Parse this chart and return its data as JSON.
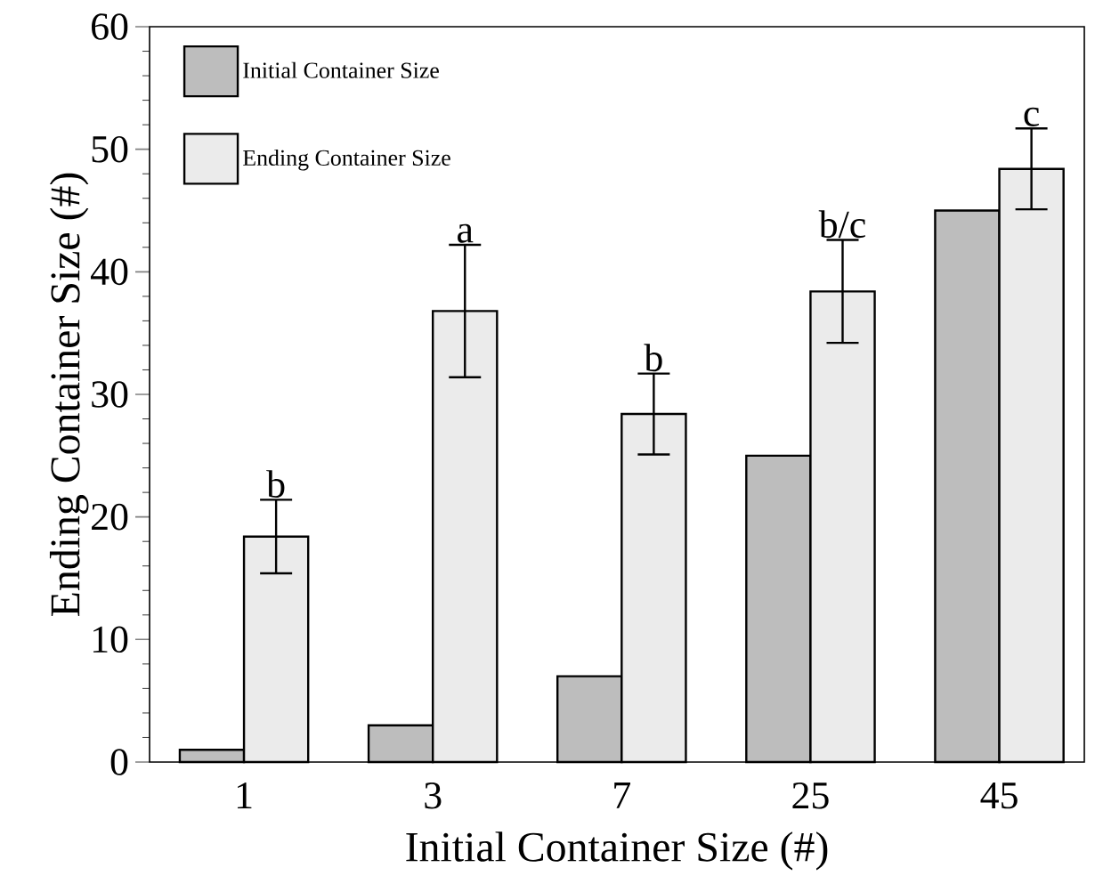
{
  "chart_data": {
    "type": "bar",
    "xlabel": "Initial Container Size (#)",
    "ylabel": "Ending Container Size (#)",
    "categories": [
      "1",
      "3",
      "7",
      "25",
      "45"
    ],
    "series": [
      {
        "name": "Initial Container Size",
        "color": "#bdbdbd",
        "values": [
          1,
          3,
          7,
          25,
          45
        ]
      },
      {
        "name": "Ending Container Size",
        "color": "#ebebeb",
        "values": [
          18.4,
          36.8,
          28.4,
          38.4,
          48.4
        ],
        "errors": [
          3.0,
          5.4,
          3.3,
          4.2,
          3.3
        ]
      }
    ],
    "annotations": [
      "b",
      "a",
      "b",
      "b/c",
      "c"
    ],
    "ylim": [
      0,
      60
    ],
    "yticks": [
      0,
      10,
      20,
      30,
      40,
      50,
      60
    ],
    "legend": "top left",
    "grid": false
  }
}
